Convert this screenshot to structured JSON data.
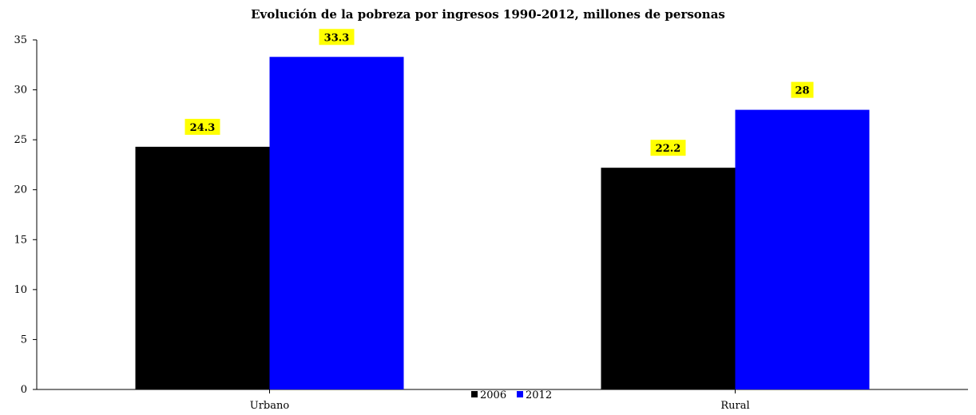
{
  "chart_data": {
    "type": "bar",
    "title": "Evolución de la pobreza por ingresos 1990-2012, millones de personas",
    "xlabel": "",
    "ylabel": "",
    "categories": [
      "Urbano",
      "Rural"
    ],
    "series": [
      {
        "name": "2006",
        "values": [
          24.3,
          22.2
        ],
        "labels": [
          "24.3",
          "22.2"
        ],
        "color": "#000000"
      },
      {
        "name": "2012",
        "values": [
          33.3,
          28
        ],
        "labels": [
          "33.3",
          "28"
        ],
        "color": "#0000ff"
      }
    ],
    "ylim": [
      0,
      35
    ],
    "yticks": [
      0,
      5,
      10,
      15,
      20,
      25,
      30,
      35
    ],
    "grid": false,
    "legend_position": "bottom-center",
    "data_label_background": "#ffff00"
  }
}
